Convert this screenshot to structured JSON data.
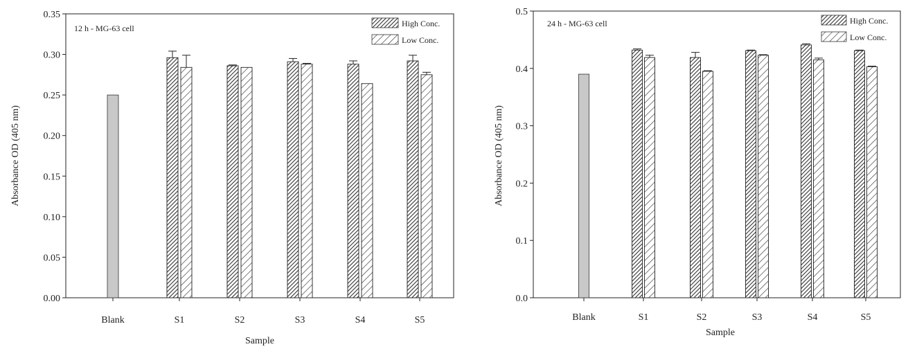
{
  "chart_data": [
    {
      "type": "bar",
      "panel_label": "12 h - MG-63 cell",
      "xlabel": "Sample",
      "ylabel": "Absorbance OD (405 nm)",
      "ylim": [
        0,
        0.35
      ],
      "yticks": [
        "0.00",
        "0.05",
        "0.10",
        "0.15",
        "0.20",
        "0.25",
        "0.30",
        "0.35"
      ],
      "legend_position": "top-right",
      "categories": [
        "Blank",
        "S1",
        "S2",
        "S3",
        "S4",
        "S5"
      ],
      "blank": {
        "category": "Blank",
        "value": 0.25,
        "color": "#c8c8c8"
      },
      "series": [
        {
          "name": "High Conc.",
          "pattern": "dense-hatch",
          "values": [
            null,
            0.296,
            0.286,
            0.291,
            0.288,
            0.292
          ],
          "errors": [
            null,
            0.008,
            0.001,
            0.004,
            0.004,
            0.007
          ]
        },
        {
          "name": "Low Conc.",
          "pattern": "sparse-hatch",
          "values": [
            null,
            0.284,
            0.284,
            0.288,
            0.264,
            0.275
          ],
          "errors": [
            null,
            0.015,
            0.0,
            0.001,
            0.0,
            0.003
          ]
        }
      ]
    },
    {
      "type": "bar",
      "panel_label": "24 h - MG-63 cell",
      "xlabel": "Sample",
      "ylabel": "Absorbance OD (405 nm)",
      "ylim": [
        0,
        0.5
      ],
      "yticks": [
        "0.0",
        "0.1",
        "0.2",
        "0.3",
        "0.4",
        "0.5"
      ],
      "legend_position": "top-right",
      "categories": [
        "Blank",
        "S1",
        "S2",
        "S3",
        "S4",
        "S5"
      ],
      "blank": {
        "category": "Blank",
        "value": 0.39,
        "color": "#c8c8c8"
      },
      "series": [
        {
          "name": "High Conc.",
          "pattern": "dense-hatch",
          "values": [
            null,
            0.432,
            0.419,
            0.431,
            0.441,
            0.431
          ],
          "errors": [
            null,
            0.002,
            0.009,
            0.001,
            0.002,
            0.001
          ]
        },
        {
          "name": "Low Conc.",
          "pattern": "sparse-hatch",
          "values": [
            null,
            0.419,
            0.395,
            0.423,
            0.415,
            0.403
          ],
          "errors": [
            null,
            0.004,
            0.001,
            0.001,
            0.003,
            0.001
          ]
        }
      ]
    }
  ]
}
